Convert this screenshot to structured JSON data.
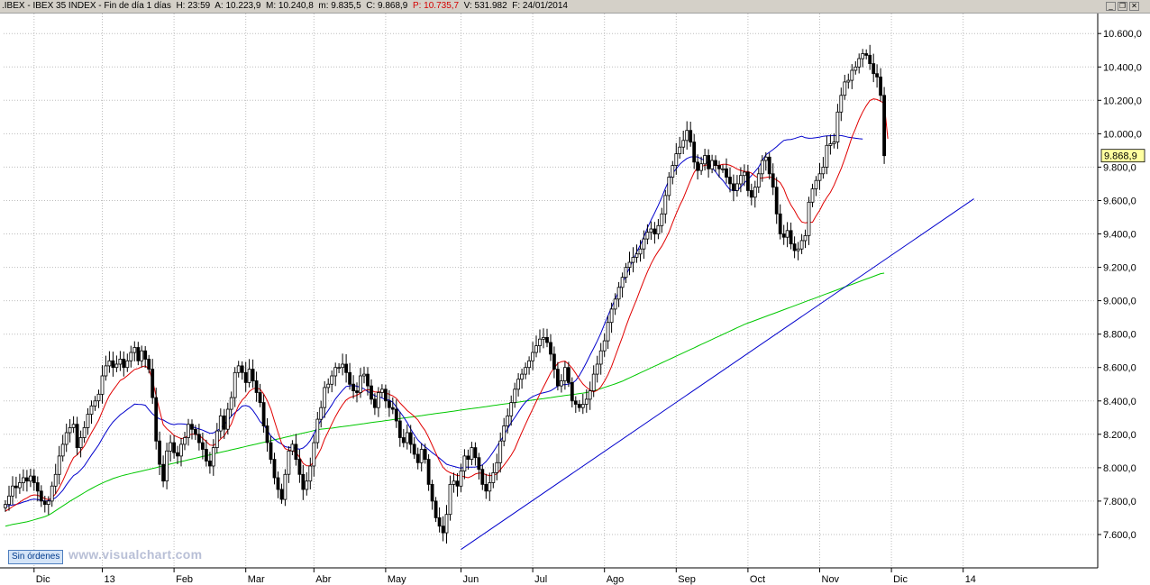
{
  "header": {
    "symbol": ".IBEX - IBEX 35 INDEX - Fin de día 1 días",
    "hour_label": "H:",
    "hour": "23:59",
    "open_label": "A:",
    "open": "10.223,9",
    "high_label": "M:",
    "high": "10.240,8",
    "low_label": "m:",
    "low": "9.835,5",
    "close_label": "C:",
    "close": "9.868,9",
    "p_label": "P:",
    "p": "10.735,7",
    "volume_label": "V:",
    "volume": "531.982",
    "date_label": "F:",
    "date": "24/01/2014"
  },
  "window_buttons": {
    "minimize": "_",
    "restore": "❐",
    "close": "✕"
  },
  "sin_ordenes": "Sin órdenes",
  "watermark": "www.visualchart.com",
  "chart_data": {
    "type": "candlestick",
    "title": ".IBEX - IBEX 35 INDEX",
    "colors": {
      "candle": "#000000",
      "ma_short": "#e00000",
      "ma_mid": "#0000cc",
      "ma_long": "#00c800",
      "trendline": "#0000cc",
      "price_box": "#ffffa0"
    },
    "y_ticks": [
      "7.600,0",
      "7.800,0",
      "8.000,0",
      "8.200,0",
      "8.400,0",
      "8.600,0",
      "8.800,0",
      "9.000,0",
      "9.200,0",
      "9.400,0",
      "9.600,0",
      "9.800,0",
      "10.000,0",
      "10.200,0",
      "10.400,0",
      "10.600,0"
    ],
    "y_tick_values": [
      7600,
      7800,
      8000,
      8200,
      8400,
      8600,
      8800,
      9000,
      9200,
      9400,
      9600,
      9800,
      10000,
      10200,
      10400,
      10600
    ],
    "ylim": [
      7400,
      10720
    ],
    "last_price_label": "9.868,9",
    "last_price": 9868.9,
    "x_labels": [
      "Dic",
      "13",
      "Feb",
      "Mar",
      "Abr",
      "May",
      "Jun",
      "Jul",
      "Ago",
      "Sep",
      "Oct",
      "Nov",
      "Dic",
      "14"
    ],
    "x_label_index": [
      8,
      27,
      47,
      67,
      86,
      106,
      127,
      147,
      167,
      187,
      207,
      227,
      247,
      267
    ],
    "close": [
      7780,
      7830,
      7890,
      7880,
      7910,
      7940,
      7920,
      7950,
      7910,
      7860,
      7800,
      7780,
      7800,
      7890,
      7960,
      8070,
      8140,
      8210,
      8240,
      8260,
      8120,
      8180,
      8240,
      8320,
      8370,
      8400,
      8440,
      8550,
      8610,
      8640,
      8600,
      8620,
      8650,
      8600,
      8640,
      8690,
      8720,
      8640,
      8700,
      8650,
      8590,
      8420,
      8160,
      8020,
      7920,
      8100,
      8150,
      8090,
      8070,
      8140,
      8180,
      8260,
      8230,
      8200,
      8150,
      8110,
      8040,
      8010,
      8120,
      8220,
      8310,
      8230,
      8350,
      8420,
      8570,
      8610,
      8570,
      8510,
      8590,
      8520,
      8450,
      8390,
      8250,
      8150,
      8050,
      7940,
      7870,
      7810,
      7960,
      8100,
      8140,
      8050,
      7960,
      7870,
      7920,
      8010,
      8150,
      8290,
      8360,
      8480,
      8500,
      8550,
      8600,
      8600,
      8620,
      8570,
      8500,
      8460,
      8450,
      8550,
      8560,
      8490,
      8410,
      8360,
      8450,
      8470,
      8400,
      8360,
      8350,
      8280,
      8180,
      8150,
      8210,
      8140,
      8080,
      8030,
      8110,
      8050,
      7900,
      7800,
      7700,
      7650,
      7610,
      7720,
      7900,
      7920,
      7890,
      7980,
      8070,
      8050,
      8120,
      8060,
      7990,
      7900,
      7860,
      7910,
      7970,
      8030,
      8160,
      8250,
      8310,
      8390,
      8470,
      8530,
      8560,
      8600,
      8640,
      8690,
      8730,
      8770,
      8780,
      8750,
      8680,
      8590,
      8490,
      8520,
      8600,
      8510,
      8400,
      8380,
      8360,
      8380,
      8410,
      8460,
      8560,
      8620,
      8700,
      8760,
      8870,
      8950,
      9010,
      9080,
      9140,
      9200,
      9230,
      9260,
      9280,
      9310,
      9370,
      9410,
      9430,
      9400,
      9450,
      9520,
      9630,
      9740,
      9810,
      9880,
      9920,
      9960,
      10020,
      9950,
      9830,
      9780,
      9820,
      9870,
      9790,
      9840,
      9810,
      9790,
      9790,
      9740,
      9700,
      9660,
      9700,
      9750,
      9770,
      9660,
      9620,
      9680,
      9760,
      9840,
      9860,
      9760,
      9680,
      9520,
      9400,
      9380,
      9420,
      9340,
      9300,
      9310,
      9360,
      9390,
      9590,
      9670,
      9720,
      9760,
      9800,
      9930,
      9940,
      9950,
      10130,
      10230,
      10310,
      10320,
      10380,
      10400,
      10450,
      10480,
      10470,
      10420,
      10360,
      10340,
      10230,
      9869
    ],
    "ma_short": [
      7740,
      7752,
      7767,
      7779,
      7793,
      7808,
      7819,
      7832,
      7837,
      7835,
      7826,
      7815,
      7808,
      7820,
      7844,
      7880,
      7922,
      7971,
      8018,
      8061,
      8077,
      8101,
      8130,
      8169,
      8209,
      8246,
      8285,
      8337,
      8387,
      8432,
      8464,
      8493,
      8523,
      8534,
      8551,
      8570,
      8588,
      8594,
      8604,
      8610,
      8591,
      8524,
      8430,
      8343,
      8258,
      8233,
      8215,
      8193,
      8184,
      8174,
      8178,
      8195,
      8201,
      8201,
      8193,
      8176,
      8156,
      8136,
      8133,
      8148,
      8172,
      8191,
      8226,
      8262,
      8320,
      8373,
      8405,
      8427,
      8457,
      8472,
      8478,
      8470,
      8442,
      8402,
      8351,
      8280,
      8212,
      8145,
      8114,
      8105,
      8102,
      8091,
      8063,
      8026,
      8011,
      8012,
      8036,
      8074,
      8114,
      8172,
      8216,
      8262,
      8306,
      8343,
      8377,
      8405,
      8420,
      8428,
      8433,
      8448,
      8462,
      8468,
      8464,
      8453,
      8453,
      8455,
      8449,
      8439,
      8430,
      8415,
      8388,
      8366,
      8342,
      8326,
      8307,
      8286,
      8252,
      8222,
      8181,
      8134,
      8087,
      8041,
      8002,
      7982,
      7970,
      7962,
      7953,
      7952,
      7945,
      7940,
      7949,
      7962,
      7968,
      7967,
      7958,
      7952,
      7955,
      7963,
      7988,
      8015,
      8044,
      8075,
      8112,
      8163,
      8212,
      8260,
      8307,
      8352,
      8396,
      8440,
      8483,
      8525,
      8568,
      8597,
      8625,
      8635,
      8638,
      8620,
      8597,
      8565,
      8531,
      8501,
      8481,
      8465,
      8454,
      8463,
      8484,
      8518,
      8557,
      8607,
      8666,
      8725,
      8783,
      8845,
      8904,
      8957,
      9010,
      9067,
      9121,
      9174,
      9221,
      9262,
      9296,
      9326,
      9366,
      9411,
      9467,
      9521,
      9570,
      9614,
      9668,
      9720,
      9768,
      9799,
      9804,
      9811,
      9814,
      9811,
      9810,
      9811,
      9817,
      9817,
      9811,
      9801,
      9788,
      9780,
      9775,
      9774,
      9764,
      9747,
      9733,
      9735,
      9738,
      9742,
      9736,
      9723,
      9707,
      9670,
      9616,
      9573,
      9540,
      9500,
      9472,
      9466,
      9470,
      9470,
      9508,
      9541,
      9583,
      9618,
      9649,
      9691,
      9742,
      9791,
      9850,
      9914,
      9980,
      10031,
      10085,
      10130,
      10168,
      10199,
      10209,
      10205,
      10195,
      10183,
      9970
    ],
    "ma_mid": [
      7770,
      7773,
      7777,
      7780,
      7786,
      7794,
      7800,
      7808,
      7812,
      7810,
      7803,
      7800,
      7802,
      7809,
      7820,
      7841,
      7865,
      7898,
      7926,
      7953,
      7966,
      7987,
      8011,
      8043,
      8076,
      8106,
      8137,
      8175,
      8211,
      8245,
      8274,
      8295,
      8317,
      8332,
      8349,
      8364,
      8381,
      8379,
      8378,
      8374,
      8347,
      8322,
      8305,
      8292,
      8286,
      8273,
      8262,
      8258,
      8262,
      8262,
      8261,
      8256,
      8245,
      8239,
      8232,
      8225,
      8215,
      8206,
      8208,
      8221,
      8237,
      8256,
      8282,
      8309,
      8330,
      8347,
      8369,
      8372,
      8366,
      8343,
      8312,
      8276,
      8256,
      8225,
      8191,
      8171,
      8153,
      8142,
      8126,
      8121,
      8122,
      8114,
      8111,
      8118,
      8135,
      8163,
      8202,
      8248,
      8284,
      8312,
      8343,
      8376,
      8412,
      8438,
      8464,
      8486,
      8490,
      8493,
      8488,
      8482,
      8472,
      8456,
      8446,
      8430,
      8426,
      8417,
      8407,
      8405,
      8392,
      8363,
      8334,
      8304,
      8270,
      8232,
      8197,
      8166,
      8144,
      8125,
      8109,
      8090,
      8074,
      8057,
      8039,
      8021,
      8014,
      8008,
      8002,
      7997,
      8004,
      8003,
      8003,
      8004,
      8008,
      8017,
      8037,
      8064,
      8095,
      8128,
      8160,
      8195,
      8233,
      8270,
      8301,
      8333,
      8365,
      8393,
      8412,
      8426,
      8435,
      8444,
      8449,
      8454,
      8461,
      8474,
      8489,
      8497,
      8497,
      8501,
      8505,
      8522,
      8552,
      8590,
      8631,
      8674,
      8715,
      8759,
      8806,
      8859,
      8910,
      8961,
      9010,
      9059,
      9105,
      9150,
      9197,
      9246,
      9292,
      9334,
      9383,
      9436,
      9483,
      9526,
      9571,
      9620,
      9674,
      9721,
      9763,
      9790,
      9817,
      9836,
      9852,
      9861,
      9862,
      9861,
      9850,
      9840,
      9819,
      9795,
      9772,
      9743,
      9721,
      9692,
      9664,
      9659,
      9659,
      9681,
      9706,
      9726,
      9750,
      9774,
      9800,
      9839,
      9874,
      9889,
      9905,
      9922,
      9942,
      9960,
      9964,
      9966,
      9971,
      9979,
      9985,
      9976,
      9973,
      9974,
      9976,
      9980,
      9985,
      9987,
      9988,
      9989,
      9989,
      9989,
      9985,
      9979,
      9976,
      9973,
      9970,
      9968
    ],
    "ma_long": [
      7650,
      7655,
      7660,
      7664,
      7668,
      7672,
      7676,
      7682,
      7688,
      7694,
      7700,
      7707,
      7716,
      7728,
      7742,
      7757,
      7771,
      7785,
      7799,
      7812,
      7825,
      7838,
      7851,
      7863,
      7875,
      7887,
      7898,
      7908,
      7917,
      7926,
      7935,
      7942,
      7949,
      7955,
      7960,
      7965,
      7970,
      7975,
      7980,
      7985,
      7990,
      7995,
      8000,
      8006,
      8012,
      8017,
      8022,
      8027,
      8032,
      8037,
      8042,
      8047,
      8052,
      8057,
      8062,
      8067,
      8072,
      8077,
      8082,
      8087,
      8092,
      8097,
      8102,
      8107,
      8112,
      8117,
      8122,
      8127,
      8132,
      8137,
      8142,
      8147,
      8152,
      8157,
      8162,
      8167,
      8172,
      8177,
      8182,
      8187,
      8192,
      8197,
      8202,
      8207,
      8212,
      8217,
      8222,
      8227,
      8231,
      8233,
      8235,
      8237,
      8240,
      8243,
      8246,
      8249,
      8252,
      8255,
      8258,
      8261,
      8264,
      8267,
      8270,
      8273,
      8276,
      8279,
      8282,
      8285,
      8288,
      8291,
      8294,
      8297,
      8300,
      8303,
      8306,
      8309,
      8312,
      8315,
      8318,
      8321,
      8324,
      8327,
      8330,
      8333,
      8336,
      8339,
      8342,
      8345,
      8348,
      8351,
      8354,
      8357,
      8360,
      8363,
      8366,
      8369,
      8372,
      8375,
      8378,
      8381,
      8384,
      8387,
      8390,
      8393,
      8396,
      8399,
      8402,
      8405,
      8408,
      8411,
      8414,
      8417,
      8420,
      8423,
      8426,
      8429,
      8432,
      8435,
      8438,
      8441,
      8444,
      8447,
      8450,
      8455,
      8460,
      8467,
      8474,
      8481,
      8488,
      8495,
      8502,
      8510,
      8518,
      8528,
      8538,
      8548,
      8558,
      8568,
      8578,
      8588,
      8598,
      8608,
      8618,
      8628,
      8638,
      8648,
      8658,
      8668,
      8678,
      8688,
      8698,
      8708,
      8718,
      8728,
      8738,
      8748,
      8758,
      8768,
      8778,
      8788,
      8798,
      8808,
      8818,
      8828,
      8838,
      8848,
      8858,
      8866,
      8874,
      8882,
      8890,
      8898,
      8906,
      8914,
      8922,
      8930,
      8938,
      8946,
      8954,
      8962,
      8970,
      8978,
      8986,
      8994,
      9002,
      9010,
      9018,
      9026,
      9034,
      9042,
      9050,
      9058,
      9066,
      9074,
      9082,
      9090,
      9098,
      9106,
      9114,
      9122,
      9130,
      9138,
      9146,
      9154,
      9162,
      9165
    ],
    "trendline": {
      "from": {
        "index": 127,
        "value": 7510
      },
      "to": {
        "index": 270,
        "value": 9610
      }
    }
  }
}
